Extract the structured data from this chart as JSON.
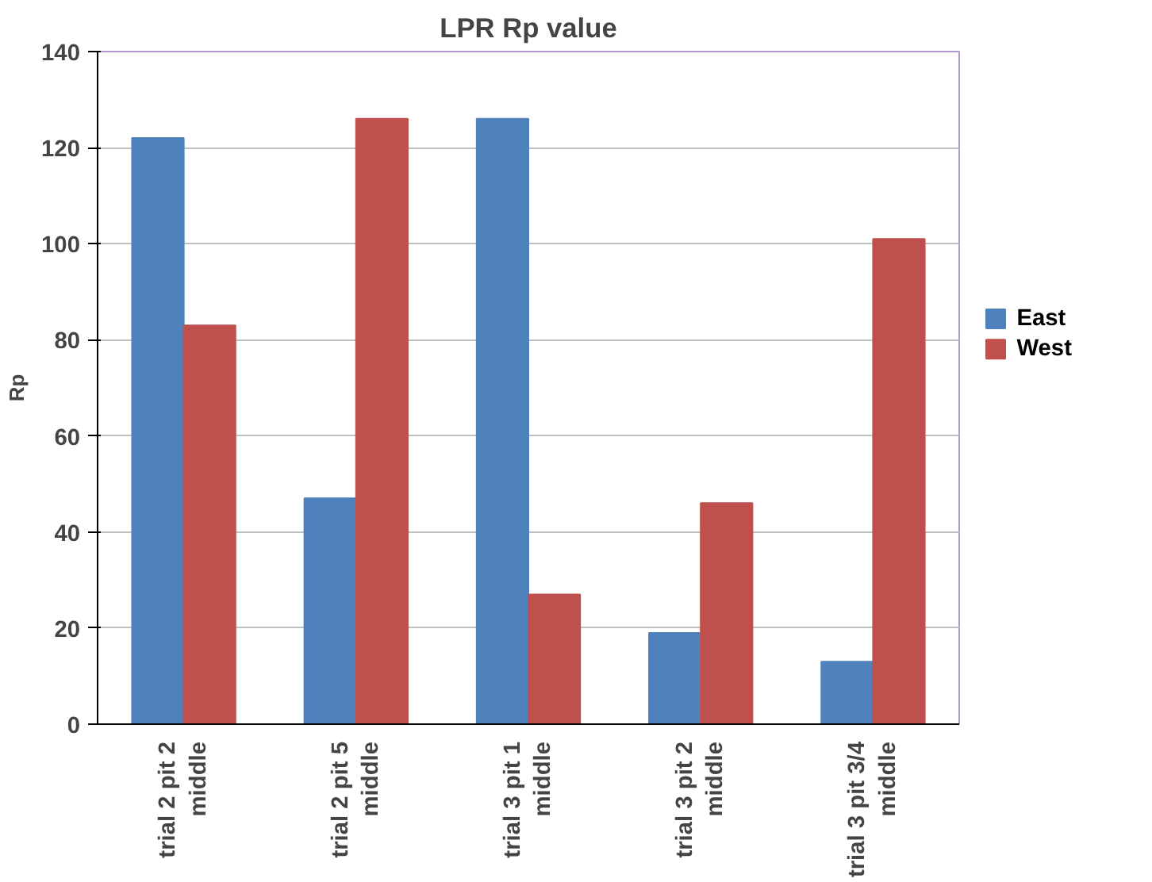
{
  "chart_data": {
    "type": "bar",
    "title": "LPR Rp value",
    "ylabel": "Rp",
    "categories": [
      "trial 2 pit 2\nmiddle",
      "trial 2 pit 5\nmiddle",
      "trial 3 pit 1\nmiddle",
      "trial 3 pit 2\nmiddle",
      "trial 3 pit 3/4\nmiddle"
    ],
    "series": [
      {
        "name": "East",
        "color": "#4f81bd",
        "values": [
          122,
          47,
          126,
          19,
          13
        ]
      },
      {
        "name": "West",
        "color": "#c0504d",
        "values": [
          83,
          126,
          27,
          46,
          101
        ]
      }
    ],
    "ylim": [
      0,
      140
    ],
    "yticks": [
      0,
      20,
      40,
      60,
      80,
      100,
      120,
      140
    ],
    "grid": "y",
    "legend": "right"
  }
}
